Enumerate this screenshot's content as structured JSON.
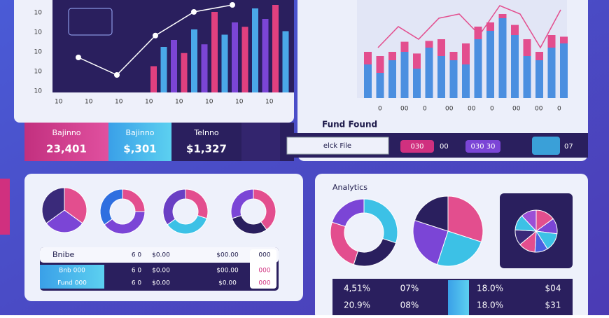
{
  "kpis": [
    {
      "label": "Bajinno",
      "value": "23,401"
    },
    {
      "label": "Bajinno",
      "value": "$,301"
    },
    {
      "label": "Telnno",
      "value": "$1,327"
    }
  ],
  "top_left_chart": {
    "type": "bar",
    "yticks": [
      "10",
      "10",
      "10",
      "10",
      "10"
    ],
    "xticks": [
      "10",
      "10",
      "10",
      "10",
      "10",
      "10",
      "10",
      "10"
    ],
    "colors": [
      "#e0407f",
      "#4aa8e8",
      "#7b45d6"
    ],
    "values": [
      30,
      52,
      60,
      45,
      72,
      55,
      92,
      66,
      80,
      75,
      96,
      84,
      100,
      70
    ],
    "line": [
      40,
      20,
      65,
      92,
      100
    ]
  },
  "top_right_chart": {
    "type": "bar",
    "title": "Fund Found",
    "xticks": [
      "0",
      "00",
      "0",
      "00",
      "00",
      "0",
      "00",
      "00",
      "0"
    ],
    "series": [
      {
        "name": "base",
        "color": "#4b8fe0",
        "values": [
          40,
          30,
          45,
          55,
          35,
          60,
          50,
          45,
          40,
          70,
          80,
          95,
          75,
          50,
          45,
          60,
          65
        ]
      },
      {
        "name": "top",
        "color": "#e34e8e",
        "values": [
          15,
          20,
          10,
          12,
          18,
          8,
          20,
          10,
          25,
          15,
          10,
          5,
          12,
          20,
          10,
          15,
          8
        ]
      }
    ],
    "line": [
      60,
      85,
      70,
      95,
      100,
      75,
      110,
      100,
      60,
      105
    ]
  },
  "toolbar": {
    "button": "elck File",
    "pill1": "030",
    "pill1_note": "00",
    "pill2": "030 30",
    "note": "07"
  },
  "donuts": [
    {
      "values": [
        35,
        30,
        35
      ],
      "colors": [
        "#e34e8e",
        "#7b45d6",
        "#3a2a7a"
      ]
    },
    {
      "values": [
        25,
        40,
        35
      ],
      "colors": [
        "#e34e8e",
        "#7b45d6",
        "#2f6fe0"
      ]
    },
    {
      "values": [
        30,
        35,
        35
      ],
      "colors": [
        "#e34e8e",
        "#3cc1e6",
        "#6a3fc4"
      ]
    },
    {
      "values": [
        40,
        30,
        30
      ],
      "colors": [
        "#e34e8e",
        "#2a1f5e",
        "#7b45d6"
      ]
    }
  ],
  "table": {
    "header": [
      "Bnibe",
      "6 0",
      "$0.00",
      "$00.00",
      "000"
    ],
    "rows": [
      [
        "Bnb 000",
        "6 0",
        "$0.00",
        "$00.00",
        "000"
      ],
      [
        "Fund 000",
        "6 0",
        "$0.00",
        "$0.00",
        "000"
      ]
    ]
  },
  "analytics": {
    "title": "Analytics",
    "donut": {
      "values": [
        30,
        25,
        25,
        20
      ],
      "colors": [
        "#3cc1e6",
        "#2a1f5e",
        "#e34e8e",
        "#7b45d6"
      ]
    },
    "pie": {
      "values": [
        30,
        25,
        25,
        20
      ],
      "colors": [
        "#e34e8e",
        "#3cc1e6",
        "#7b45d6",
        "#2a1f5e"
      ]
    },
    "star": {
      "values": [
        15,
        12,
        14,
        10,
        13,
        12,
        12,
        12
      ],
      "colors": [
        "#e34e8e",
        "#7b45d6",
        "#3cc1e6",
        "#4b5fe0",
        "#e34e8e",
        "#3a2a7a",
        "#3cc1e6",
        "#9b4fd6"
      ]
    },
    "rows": [
      [
        "4,51%",
        "07%",
        "18.0%",
        "$04"
      ],
      [
        "20.9%",
        "08%",
        "18.0%",
        "$31"
      ]
    ]
  }
}
